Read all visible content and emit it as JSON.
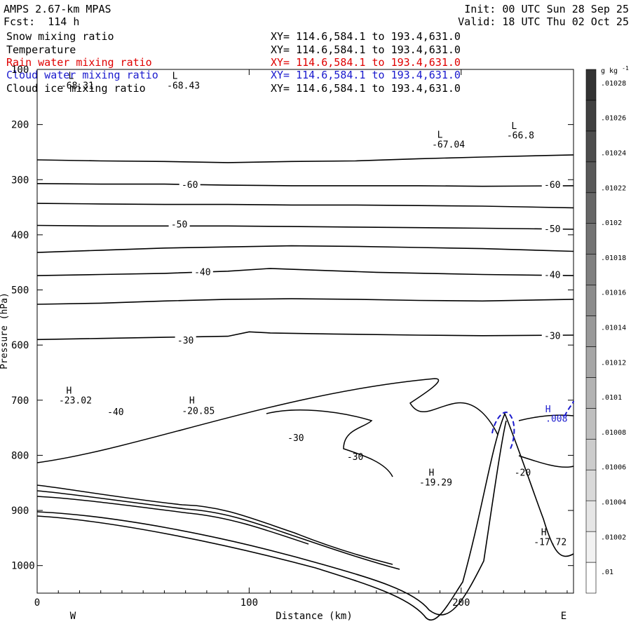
{
  "header": {
    "model": "AMPS 2.67-km MPAS",
    "forecast": "Fcst:  114 h",
    "init": "Init: 00 UTC Sun 28 Sep 25",
    "valid": "Valid: 18 UTC Thu 02 Oct 25"
  },
  "fields": [
    {
      "name": "Snow mixing ratio",
      "xy": "XY= 114.6,584.1 to 193.4,631.0",
      "color": "#000000"
    },
    {
      "name": "Temperature",
      "xy": "XY= 114.6,584.1 to 193.4,631.0",
      "color": "#000000"
    },
    {
      "name": "Rain water mixing ratio",
      "xy": "XY= 114.6,584.1 to 193.4,631.0",
      "color": "#e00000"
    },
    {
      "name": "Cloud water mixing ratio",
      "xy": "XY= 114.6,584.1 to 193.4,631.0",
      "color": "#1a1acd"
    },
    {
      "name": "Cloud ice mixing ratio",
      "xy": "XY= 114.6,584.1 to 193.4,631.0",
      "color": "#000000"
    }
  ],
  "chart_data": {
    "type": "contour",
    "xlabel": "Distance (km)",
    "ylabel": "Pressure (hPa)",
    "xlim": [
      0,
      253
    ],
    "ylim": [
      1050,
      100
    ],
    "x_ticks": [
      0,
      100,
      200
    ],
    "y_ticks": [
      100,
      200,
      300,
      400,
      500,
      600,
      700,
      800,
      900,
      1000
    ],
    "x_end_labels": {
      "left": "W",
      "right": "E"
    },
    "colorbar": {
      "unit": "g kg",
      "unit_exp": "-1",
      "labels": [
        ".01",
        ".01002",
        ".01004",
        ".01006",
        ".01008",
        ".0101",
        ".01012",
        ".01014",
        ".01016",
        ".01018",
        ".0102",
        ".01022",
        ".01024",
        ".01026",
        ".01028"
      ],
      "colors": [
        "#ffffff",
        "#f2f2f2",
        "#e6e6e6",
        "#d9d9d9",
        "#cccccc",
        "#bfbfbf",
        "#b3b3b3",
        "#a6a6a6",
        "#999999",
        "#8c8c8c",
        "#808080",
        "#737373",
        "#666666",
        "#595959",
        "#4d4d4d",
        "#404040",
        "#333333"
      ]
    },
    "temperature_contours": [
      {
        "label": "",
        "points": [
          [
            0,
            264
          ],
          [
            30,
            266
          ],
          [
            60,
            267
          ],
          [
            90,
            269
          ],
          [
            120,
            267
          ],
          [
            150,
            266
          ],
          [
            180,
            262
          ],
          [
            210,
            259
          ],
          [
            253,
            255
          ]
        ]
      },
      {
        "label": "-60",
        "label_pos": [
          [
            72,
            310
          ],
          [
            243,
            310
          ]
        ],
        "points": [
          [
            0,
            307
          ],
          [
            30,
            308
          ],
          [
            60,
            308
          ],
          [
            90,
            310
          ],
          [
            120,
            311
          ],
          [
            150,
            311
          ],
          [
            180,
            311
          ],
          [
            210,
            312
          ],
          [
            253,
            311
          ]
        ]
      },
      {
        "label": "",
        "points": [
          [
            0,
            343
          ],
          [
            30,
            344
          ],
          [
            60,
            345
          ],
          [
            90,
            345
          ],
          [
            120,
            346
          ],
          [
            150,
            346
          ],
          [
            180,
            347
          ],
          [
            210,
            348
          ],
          [
            253,
            351
          ]
        ]
      },
      {
        "label": "-50",
        "label_pos": [
          [
            67,
            382
          ],
          [
            243,
            390
          ]
        ],
        "points": [
          [
            0,
            383
          ],
          [
            30,
            384
          ],
          [
            60,
            384
          ],
          [
            90,
            384
          ],
          [
            120,
            385
          ],
          [
            150,
            386
          ],
          [
            180,
            387
          ],
          [
            210,
            388
          ],
          [
            253,
            390
          ]
        ]
      },
      {
        "label": "",
        "points": [
          [
            0,
            432
          ],
          [
            30,
            428
          ],
          [
            60,
            424
          ],
          [
            90,
            422
          ],
          [
            120,
            420
          ],
          [
            150,
            421
          ],
          [
            180,
            423
          ],
          [
            210,
            425
          ],
          [
            253,
            430
          ]
        ]
      },
      {
        "label": "-40",
        "label_pos": [
          [
            78,
            468
          ],
          [
            243,
            473
          ]
        ],
        "points": [
          [
            0,
            474
          ],
          [
            30,
            472
          ],
          [
            60,
            470
          ],
          [
            90,
            466
          ],
          [
            110,
            461
          ],
          [
            130,
            464
          ],
          [
            160,
            468
          ],
          [
            210,
            472
          ],
          [
            253,
            474
          ]
        ]
      },
      {
        "label": "",
        "points": [
          [
            0,
            526
          ],
          [
            30,
            524
          ],
          [
            60,
            520
          ],
          [
            90,
            517
          ],
          [
            120,
            516
          ],
          [
            150,
            517
          ],
          [
            180,
            519
          ],
          [
            210,
            520
          ],
          [
            253,
            517
          ]
        ]
      },
      {
        "label": "-30",
        "label_pos": [
          [
            70,
            592
          ],
          [
            243,
            584
          ]
        ],
        "points": [
          [
            0,
            590
          ],
          [
            30,
            588
          ],
          [
            60,
            586
          ],
          [
            90,
            584
          ],
          [
            100,
            576
          ],
          [
            110,
            578
          ],
          [
            140,
            580
          ],
          [
            180,
            582
          ],
          [
            210,
            583
          ],
          [
            253,
            582
          ]
        ]
      }
    ],
    "labels": [
      {
        "text": "L",
        "x": 16,
        "p": 112
      },
      {
        "text": "-68.31",
        "x": 19,
        "p": 130
      },
      {
        "text": "L",
        "x": 65,
        "p": 112
      },
      {
        "text": "-68.43",
        "x": 69,
        "p": 130
      },
      {
        "text": "L",
        "x": 190,
        "p": 219
      },
      {
        "text": "-67.04",
        "x": 194,
        "p": 237
      },
      {
        "text": "L",
        "x": 225,
        "p": 203
      },
      {
        "text": "-66.8",
        "x": 228,
        "p": 220
      },
      {
        "text": "H",
        "x": 15,
        "p": 683
      },
      {
        "text": "-23.02",
        "x": 18,
        "p": 701
      },
      {
        "text": "-40",
        "x": 37,
        "p": 722
      },
      {
        "text": "H",
        "x": 73,
        "p": 701
      },
      {
        "text": "-20.85",
        "x": 76,
        "p": 720
      },
      {
        "text": "-30",
        "x": 122,
        "p": 769
      },
      {
        "text": "-30",
        "x": 150,
        "p": 803
      },
      {
        "text": "H",
        "x": 186,
        "p": 832
      },
      {
        "text": "-19.29",
        "x": 188,
        "p": 850
      },
      {
        "text": "-20",
        "x": 229,
        "p": 832
      },
      {
        "text": "H",
        "x": 241,
        "p": 717
      },
      {
        "text": ".008",
        "x": 245,
        "p": 734
      },
      {
        "text": "H",
        "x": 239,
        "p": 940
      },
      {
        "text": "-17.72",
        "x": 242,
        "p": 958
      }
    ]
  }
}
